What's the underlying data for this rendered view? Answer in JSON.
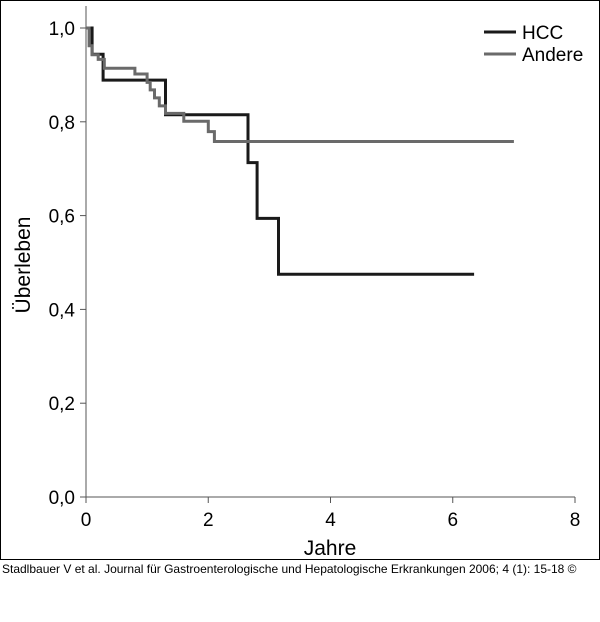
{
  "chart_data": {
    "type": "line",
    "step": true,
    "title": "",
    "xlabel": "Jahre",
    "ylabel": "Überleben",
    "xlim": [
      0,
      8
    ],
    "ylim": [
      0,
      1
    ],
    "xticks": [
      0,
      2,
      4,
      6,
      8
    ],
    "xtick_labels": [
      "0",
      "2",
      "4",
      "6",
      "8"
    ],
    "yticks": [
      0,
      0.2,
      0.4,
      0.6,
      0.8,
      1.0
    ],
    "ytick_labels": [
      "0,0",
      "0,2",
      "0,4",
      "0,6",
      "0,8",
      "1,0"
    ],
    "grid": false,
    "legend_position": "top-right",
    "series": [
      {
        "name": "HCC",
        "color": "#1a1a1a",
        "points": [
          [
            0,
            1.0
          ],
          [
            0.1,
            1.0
          ],
          [
            0.1,
            0.944
          ],
          [
            0.28,
            0.944
          ],
          [
            0.28,
            0.889
          ],
          [
            1.3,
            0.889
          ],
          [
            1.3,
            0.815
          ],
          [
            2.65,
            0.815
          ],
          [
            2.65,
            0.713
          ],
          [
            2.8,
            0.713
          ],
          [
            2.8,
            0.594
          ],
          [
            3.15,
            0.594
          ],
          [
            3.15,
            0.475
          ],
          [
            6.35,
            0.475
          ]
        ]
      },
      {
        "name": "Andere",
        "color": "#6a6a6a",
        "points": [
          [
            0,
            1.0
          ],
          [
            0.05,
            1.0
          ],
          [
            0.05,
            0.962
          ],
          [
            0.1,
            0.962
          ],
          [
            0.1,
            0.943
          ],
          [
            0.2,
            0.943
          ],
          [
            0.2,
            0.933
          ],
          [
            0.3,
            0.933
          ],
          [
            0.3,
            0.914
          ],
          [
            0.8,
            0.914
          ],
          [
            0.8,
            0.902
          ],
          [
            1.0,
            0.902
          ],
          [
            1.0,
            0.884
          ],
          [
            1.05,
            0.884
          ],
          [
            1.05,
            0.868
          ],
          [
            1.12,
            0.868
          ],
          [
            1.12,
            0.851
          ],
          [
            1.2,
            0.851
          ],
          [
            1.2,
            0.834
          ],
          [
            1.3,
            0.834
          ],
          [
            1.3,
            0.818
          ],
          [
            1.6,
            0.818
          ],
          [
            1.6,
            0.801
          ],
          [
            2.0,
            0.801
          ],
          [
            2.0,
            0.779
          ],
          [
            2.1,
            0.779
          ],
          [
            2.1,
            0.758
          ],
          [
            7.0,
            0.758
          ]
        ]
      }
    ]
  },
  "citation": "Stadlbauer V et al. Journal für Gastroenterologische und Hepatologische Erkrankungen 2006; 4 (1): 15-18 ©"
}
